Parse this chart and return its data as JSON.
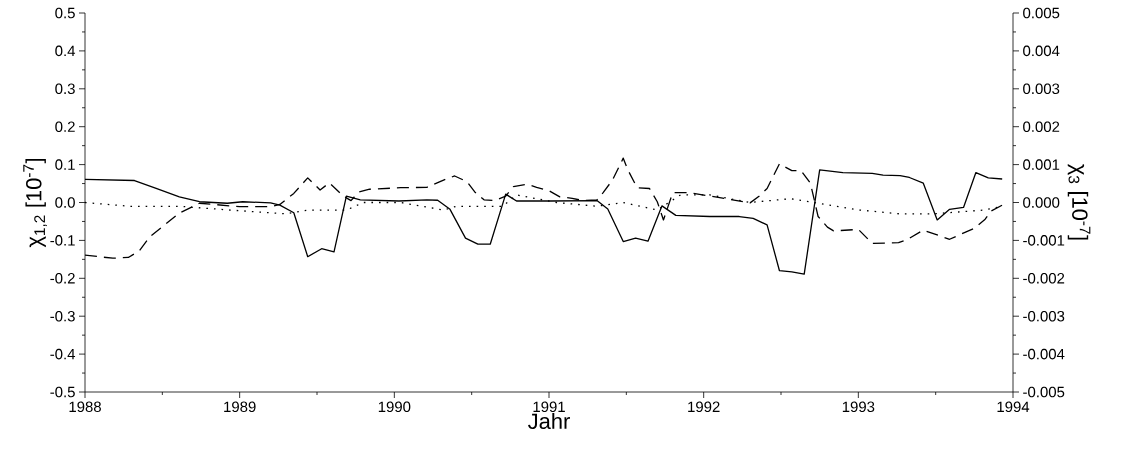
{
  "chart_data": {
    "type": "line",
    "xlabel": "Jahr",
    "ylabel": "χ$_{1,2}$ [10$^{-7}$]",
    "y2label": "χ$_{3}$ [10$^{-7}$]",
    "xlim": [
      1988,
      1994
    ],
    "xticks": [
      1988,
      1989,
      1990,
      1991,
      1992,
      1993,
      1994
    ],
    "ylim": [
      -0.5,
      0.5
    ],
    "yticks": [
      -0.5,
      -0.4,
      -0.3,
      -0.2,
      -0.1,
      {
        "value": 0,
        "label": "0.0"
      },
      0.1,
      0.2,
      0.3,
      0.4,
      0.5
    ],
    "y2lim": [
      -0.005,
      0.005
    ],
    "y2ticks": [
      -0.005,
      -0.004,
      -0.003,
      -0.002,
      -0.001,
      {
        "value": 0,
        "label": "0.000"
      },
      0.001,
      0.002,
      0.003,
      0.004,
      0.005
    ],
    "grid": false,
    "series": [
      {
        "color": "#000000",
        "line_style": "solid",
        "x": [
          1988.0,
          1988.32,
          1988.46,
          1988.61,
          1988.74,
          1988.92,
          1989.02,
          1989.2,
          1989.26,
          1989.35,
          1989.44,
          1989.53,
          1989.61,
          1989.69,
          1989.78,
          1990.03,
          1990.21,
          1990.28,
          1990.36,
          1990.46,
          1990.54,
          1990.62,
          1990.72,
          1990.79,
          1991.01,
          1991.31,
          1991.38,
          1991.48,
          1991.56,
          1991.64,
          1991.73,
          1991.82,
          1992.04,
          1992.23,
          1992.32,
          1992.41,
          1992.49,
          1992.57,
          1992.65,
          1992.75,
          1992.9,
          1993.09,
          1993.16,
          1993.27,
          1993.33,
          1993.42,
          1993.51,
          1993.59,
          1993.68,
          1993.76,
          1993.84,
          1993.93
        ],
        "values": [
          0.061,
          0.058,
          0.037,
          0.015,
          0.002,
          -0.002,
          0.002,
          -0.001,
          -0.007,
          -0.027,
          -0.143,
          -0.122,
          -0.13,
          0.017,
          0.007,
          0.004,
          0.007,
          0.006,
          -0.018,
          -0.094,
          -0.11,
          -0.11,
          0.022,
          0.004,
          0.004,
          0.005,
          -0.017,
          -0.103,
          -0.094,
          -0.102,
          -0.009,
          -0.034,
          -0.037,
          -0.037,
          -0.042,
          -0.059,
          -0.18,
          -0.183,
          -0.189,
          0.086,
          0.079,
          0.077,
          0.072,
          0.071,
          0.066,
          0.051,
          -0.046,
          -0.018,
          -0.013,
          0.079,
          0.065,
          0.062
        ]
      },
      {
        "color": "#000000",
        "line_style": "dashed",
        "x": [
          1988.0,
          1988.18,
          1988.28,
          1988.35,
          1988.42,
          1988.61,
          1988.74,
          1989.0,
          1989.2,
          1989.26,
          1989.35,
          1989.44,
          1989.52,
          1989.58,
          1989.67,
          1989.72,
          1989.77,
          1989.84,
          1990.04,
          1990.21,
          1990.33,
          1990.39,
          1990.47,
          1990.52,
          1990.58,
          1990.65,
          1990.72,
          1990.77,
          1990.86,
          1990.92,
          1991.0,
          1991.07,
          1991.15,
          1991.22,
          1991.31,
          1991.35,
          1991.41,
          1991.48,
          1991.51,
          1991.57,
          1991.65,
          1991.7,
          1991.74,
          1991.8,
          1991.91,
          1992.04,
          1992.3,
          1992.36,
          1992.41,
          1992.49,
          1992.57,
          1992.63,
          1992.69,
          1992.74,
          1992.8,
          1992.84,
          1993.0,
          1993.09,
          1993.26,
          1993.31,
          1993.42,
          1993.59,
          1993.75,
          1993.82,
          1993.86,
          1993.93
        ],
        "values": [
          -0.139,
          -0.147,
          -0.145,
          -0.128,
          -0.09,
          -0.028,
          -0.002,
          -0.011,
          -0.011,
          -0.005,
          0.024,
          0.065,
          0.033,
          0.052,
          0.017,
          0.005,
          0.028,
          0.035,
          0.039,
          0.04,
          0.061,
          0.07,
          0.055,
          0.028,
          0.007,
          0.005,
          0.017,
          0.042,
          0.048,
          0.04,
          0.031,
          0.015,
          0.011,
          0.005,
          0.007,
          0.026,
          0.059,
          0.117,
          0.086,
          0.039,
          0.037,
          0.002,
          -0.046,
          0.026,
          0.026,
          0.017,
          -0.001,
          0.017,
          0.037,
          0.102,
          0.084,
          0.084,
          0.051,
          -0.037,
          -0.065,
          -0.075,
          -0.071,
          -0.108,
          -0.106,
          -0.099,
          -0.073,
          -0.097,
          -0.068,
          -0.044,
          -0.022,
          -0.007
        ]
      },
      {
        "color": "#000000",
        "line_style": "dotted",
        "axis": "y2",
        "x": [
          1988.0,
          1988.29,
          1988.61,
          1988.94,
          1989.3,
          1989.44,
          1989.69,
          1989.8,
          1990.04,
          1990.32,
          1990.4,
          1990.7,
          1990.79,
          1991.05,
          1991.31,
          1991.48,
          1991.7,
          1991.85,
          1992.04,
          1992.3,
          1992.56,
          1992.71,
          1993.01,
          1993.27,
          1993.48,
          1993.81,
          1993.93
        ],
        "values": [
          0.0,
          -0.0001,
          -0.0001,
          -0.0002,
          -0.0003,
          -0.0002,
          -0.0002,
          0.0,
          0.0,
          -0.0002,
          -0.0001,
          -0.0001,
          0.0002,
          0.0,
          -0.0001,
          0.0,
          -0.0002,
          0.0002,
          0.0002,
          0.0,
          0.0001,
          0.0,
          -0.0002,
          -0.0003,
          -0.0003,
          -0.0002,
          -0.0001
        ]
      }
    ]
  }
}
